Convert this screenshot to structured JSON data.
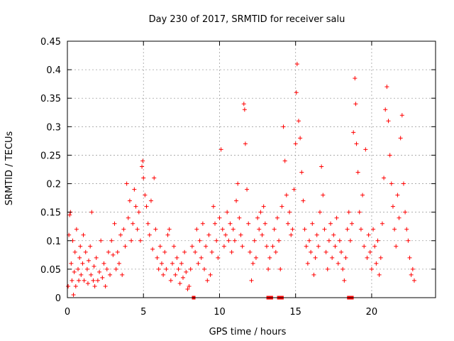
{
  "chart_data": {
    "type": "scatter",
    "title": "Day 230 of 2017, SRMTID for receiver salu",
    "xlabel": "GPS time / hours",
    "ylabel": "SRMTID / TECUs",
    "xlim": [
      0,
      24.2
    ],
    "ylim": [
      0,
      0.45
    ],
    "xticks": [
      0,
      5,
      10,
      15,
      20
    ],
    "xtick_labels": [
      "0",
      "5",
      "10",
      "15",
      "20"
    ],
    "yticks": [
      0,
      0.05,
      0.1,
      0.15,
      0.2,
      0.25,
      0.3,
      0.35,
      0.4,
      0.45
    ],
    "ytick_labels": [
      "0",
      "0.05",
      "0.1",
      "0.15",
      "0.2",
      "0.25",
      "0.3",
      "0.35",
      "0.4",
      "0.45"
    ],
    "grid": true,
    "marker": "+",
    "color": "#ff0000",
    "series": [
      {
        "name": "SRMTID",
        "points": [
          [
            0.05,
            0.02
          ],
          [
            0.1,
            0.11
          ],
          [
            0.15,
            0.145
          ],
          [
            0.2,
            0.15
          ],
          [
            0.25,
            0.06
          ],
          [
            0.3,
            0.03
          ],
          [
            0.35,
            0.1
          ],
          [
            0.4,
            0.005
          ],
          [
            0.45,
            0.045
          ],
          [
            0.5,
            0.08
          ],
          [
            0.55,
            0.02
          ],
          [
            0.6,
            0.12
          ],
          [
            0.7,
            0.05
          ],
          [
            0.75,
            0.03
          ],
          [
            0.8,
            0.07
          ],
          [
            0.85,
            0.09
          ],
          [
            0.9,
            0.04
          ],
          [
            1.0,
            0.06
          ],
          [
            1.05,
            0.11
          ],
          [
            1.1,
            0.03
          ],
          [
            1.2,
            0.08
          ],
          [
            1.3,
            0.05
          ],
          [
            1.35,
            0.025
          ],
          [
            1.4,
            0.065
          ],
          [
            1.5,
            0.09
          ],
          [
            1.55,
            0.04
          ],
          [
            1.6,
            0.15
          ],
          [
            1.7,
            0.03
          ],
          [
            1.75,
            0.055
          ],
          [
            1.8,
            0.02
          ],
          [
            1.9,
            0.07
          ],
          [
            2.0,
            0.03
          ],
          [
            2.1,
            0.045
          ],
          [
            2.2,
            0.1
          ],
          [
            2.3,
            0.035
          ],
          [
            2.4,
            0.06
          ],
          [
            2.5,
            0.02
          ],
          [
            2.6,
            0.05
          ],
          [
            2.7,
            0.08
          ],
          [
            2.8,
            0.04
          ],
          [
            2.9,
            0.1
          ],
          [
            3.0,
            0.075
          ],
          [
            3.1,
            0.13
          ],
          [
            3.2,
            0.05
          ],
          [
            3.3,
            0.08
          ],
          [
            3.4,
            0.06
          ],
          [
            3.5,
            0.11
          ],
          [
            3.6,
            0.04
          ],
          [
            3.7,
            0.12
          ],
          [
            3.8,
            0.09
          ],
          [
            3.9,
            0.2
          ],
          [
            4.0,
            0.14
          ],
          [
            4.1,
            0.17
          ],
          [
            4.2,
            0.1
          ],
          [
            4.3,
            0.13
          ],
          [
            4.4,
            0.19
          ],
          [
            4.5,
            0.16
          ],
          [
            4.6,
            0.12
          ],
          [
            4.7,
            0.15
          ],
          [
            4.8,
            0.1
          ],
          [
            4.9,
            0.23
          ],
          [
            4.95,
            0.24
          ],
          [
            5.0,
            0.21
          ],
          [
            5.1,
            0.18
          ],
          [
            5.2,
            0.16
          ],
          [
            5.3,
            0.13
          ],
          [
            5.4,
            0.11
          ],
          [
            5.5,
            0.17
          ],
          [
            5.6,
            0.085
          ],
          [
            5.7,
            0.21
          ],
          [
            5.8,
            0.12
          ],
          [
            5.9,
            0.07
          ],
          [
            6.0,
            0.05
          ],
          [
            6.1,
            0.09
          ],
          [
            6.2,
            0.06
          ],
          [
            6.3,
            0.04
          ],
          [
            6.4,
            0.08
          ],
          [
            6.5,
            0.05
          ],
          [
            6.6,
            0.11
          ],
          [
            6.7,
            0.12
          ],
          [
            6.8,
            0.03
          ],
          [
            6.9,
            0.06
          ],
          [
            7.0,
            0.09
          ],
          [
            7.1,
            0.04
          ],
          [
            7.2,
            0.07
          ],
          [
            7.3,
            0.05
          ],
          [
            7.4,
            0.025
          ],
          [
            7.5,
            0.06
          ],
          [
            7.6,
            0.035
          ],
          [
            7.7,
            0.08
          ],
          [
            7.8,
            0.045
          ],
          [
            7.9,
            0.015
          ],
          [
            8.0,
            0.02
          ],
          [
            8.1,
            0.05
          ],
          [
            8.2,
            0.09
          ],
          [
            8.4,
            0.08
          ],
          [
            8.5,
            0.12
          ],
          [
            8.6,
            0.06
          ],
          [
            8.7,
            0.1
          ],
          [
            8.8,
            0.07
          ],
          [
            8.9,
            0.13
          ],
          [
            9.0,
            0.05
          ],
          [
            9.1,
            0.09
          ],
          [
            9.2,
            0.03
          ],
          [
            9.3,
            0.11
          ],
          [
            9.4,
            0.04
          ],
          [
            9.5,
            0.08
          ],
          [
            9.6,
            0.16
          ],
          [
            9.7,
            0.13
          ],
          [
            9.8,
            0.1
          ],
          [
            9.9,
            0.07
          ],
          [
            10.0,
            0.14
          ],
          [
            10.1,
            0.26
          ],
          [
            10.2,
            0.12
          ],
          [
            10.3,
            0.09
          ],
          [
            10.4,
            0.11
          ],
          [
            10.5,
            0.15
          ],
          [
            10.6,
            0.1
          ],
          [
            10.7,
            0.13
          ],
          [
            10.8,
            0.08
          ],
          [
            10.9,
            0.12
          ],
          [
            11.0,
            0.1
          ],
          [
            11.1,
            0.17
          ],
          [
            11.2,
            0.2
          ],
          [
            11.3,
            0.14
          ],
          [
            11.4,
            0.11
          ],
          [
            11.5,
            0.09
          ],
          [
            11.6,
            0.34
          ],
          [
            11.65,
            0.33
          ],
          [
            11.7,
            0.27
          ],
          [
            11.8,
            0.19
          ],
          [
            11.9,
            0.13
          ],
          [
            12.0,
            0.08
          ],
          [
            12.1,
            0.03
          ],
          [
            12.2,
            0.06
          ],
          [
            12.3,
            0.1
          ],
          [
            12.4,
            0.07
          ],
          [
            12.5,
            0.14
          ],
          [
            12.6,
            0.12
          ],
          [
            12.7,
            0.15
          ],
          [
            12.8,
            0.11
          ],
          [
            12.9,
            0.16
          ],
          [
            13.0,
            0.13
          ],
          [
            13.1,
            0.09
          ],
          [
            13.2,
            0.05
          ],
          [
            13.3,
            0.07
          ],
          [
            13.5,
            0.09
          ],
          [
            13.6,
            0.12
          ],
          [
            13.7,
            0.08
          ],
          [
            13.8,
            0.14
          ],
          [
            13.9,
            0.1
          ],
          [
            14.0,
            0.05
          ],
          [
            14.1,
            0.16
          ],
          [
            14.2,
            0.3
          ],
          [
            14.3,
            0.24
          ],
          [
            14.4,
            0.18
          ],
          [
            14.5,
            0.13
          ],
          [
            14.6,
            0.15
          ],
          [
            14.7,
            0.11
          ],
          [
            14.8,
            0.12
          ],
          [
            14.9,
            0.19
          ],
          [
            15.0,
            0.27
          ],
          [
            15.05,
            0.36
          ],
          [
            15.1,
            0.41
          ],
          [
            15.2,
            0.31
          ],
          [
            15.3,
            0.28
          ],
          [
            15.4,
            0.22
          ],
          [
            15.5,
            0.17
          ],
          [
            15.6,
            0.12
          ],
          [
            15.7,
            0.09
          ],
          [
            15.8,
            0.06
          ],
          [
            15.9,
            0.1
          ],
          [
            16.0,
            0.08
          ],
          [
            16.1,
            0.13
          ],
          [
            16.2,
            0.04
          ],
          [
            16.3,
            0.07
          ],
          [
            16.4,
            0.11
          ],
          [
            16.5,
            0.09
          ],
          [
            16.6,
            0.15
          ],
          [
            16.7,
            0.23
          ],
          [
            16.8,
            0.18
          ],
          [
            16.9,
            0.12
          ],
          [
            17.0,
            0.08
          ],
          [
            17.1,
            0.05
          ],
          [
            17.2,
            0.1
          ],
          [
            17.3,
            0.13
          ],
          [
            17.4,
            0.07
          ],
          [
            17.5,
            0.11
          ],
          [
            17.6,
            0.09
          ],
          [
            17.7,
            0.14
          ],
          [
            17.8,
            0.06
          ],
          [
            17.9,
            0.1
          ],
          [
            18.0,
            0.08
          ],
          [
            18.1,
            0.05
          ],
          [
            18.2,
            0.03
          ],
          [
            18.3,
            0.07
          ],
          [
            18.4,
            0.12
          ],
          [
            18.5,
            0.15
          ],
          [
            18.6,
            0.1
          ],
          [
            18.7,
            0.13
          ],
          [
            18.8,
            0.29
          ],
          [
            18.9,
            0.385
          ],
          [
            18.95,
            0.34
          ],
          [
            19.0,
            0.27
          ],
          [
            19.1,
            0.22
          ],
          [
            19.2,
            0.15
          ],
          [
            19.3,
            0.12
          ],
          [
            19.4,
            0.18
          ],
          [
            19.5,
            0.09
          ],
          [
            19.6,
            0.26
          ],
          [
            19.7,
            0.07
          ],
          [
            19.8,
            0.11
          ],
          [
            19.9,
            0.08
          ],
          [
            20.0,
            0.05
          ],
          [
            20.1,
            0.12
          ],
          [
            20.2,
            0.09
          ],
          [
            20.3,
            0.06
          ],
          [
            20.4,
            0.1
          ],
          [
            20.5,
            0.04
          ],
          [
            20.6,
            0.07
          ],
          [
            20.7,
            0.13
          ],
          [
            20.8,
            0.21
          ],
          [
            20.9,
            0.33
          ],
          [
            21.0,
            0.37
          ],
          [
            21.1,
            0.31
          ],
          [
            21.2,
            0.25
          ],
          [
            21.3,
            0.2
          ],
          [
            21.4,
            0.16
          ],
          [
            21.5,
            0.12
          ],
          [
            21.6,
            0.09
          ],
          [
            21.7,
            0.18
          ],
          [
            21.8,
            0.14
          ],
          [
            21.9,
            0.28
          ],
          [
            22.0,
            0.32
          ],
          [
            22.1,
            0.2
          ],
          [
            22.2,
            0.15
          ],
          [
            22.3,
            0.12
          ],
          [
            22.4,
            0.1
          ],
          [
            22.5,
            0.07
          ],
          [
            22.6,
            0.04
          ],
          [
            22.7,
            0.05
          ],
          [
            22.8,
            0.03
          ]
        ]
      }
    ],
    "gap_markers_x": [
      8.3,
      13.2,
      13.4,
      13.9,
      14.1,
      18.5,
      18.7
    ]
  }
}
